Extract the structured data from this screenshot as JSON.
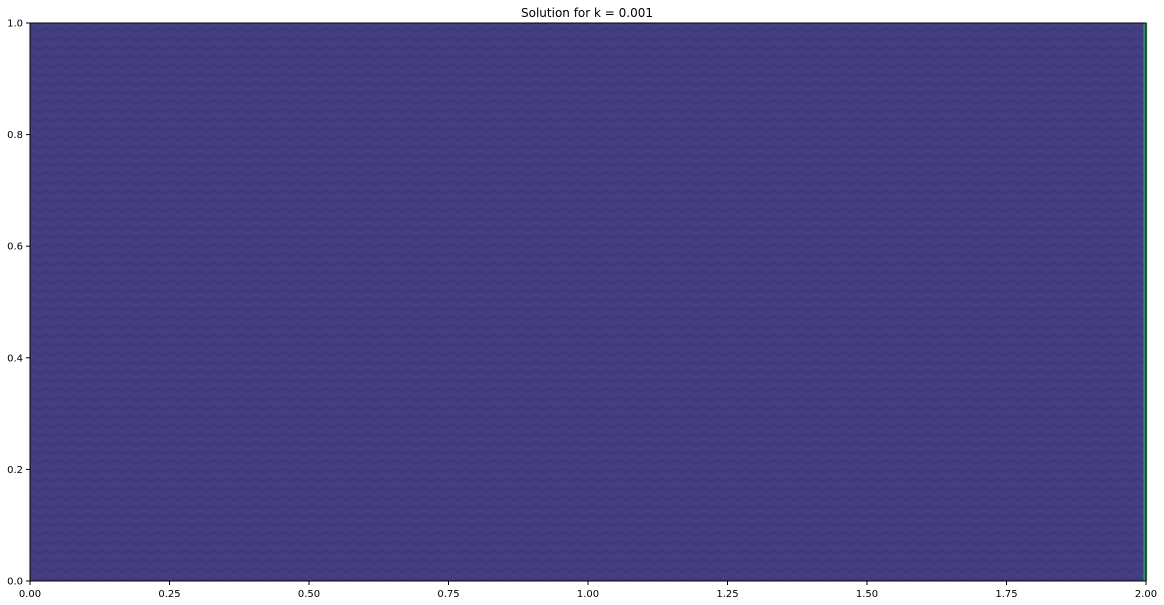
{
  "chart_data": {
    "type": "heatmap",
    "title": "Solution for k = 0.001",
    "xlabel": "",
    "ylabel": "",
    "xlim": [
      0.0,
      2.0
    ],
    "ylim": [
      0.0,
      1.0
    ],
    "xticks": [
      0.0,
      0.25,
      0.5,
      0.75,
      1.0,
      1.25,
      1.5,
      1.75,
      2.0
    ],
    "xtick_labels": [
      "0.00",
      "0.25",
      "0.50",
      "0.75",
      "1.00",
      "1.25",
      "1.50",
      "1.75",
      "2.00"
    ],
    "yticks": [
      0.0,
      0.2,
      0.4,
      0.6,
      0.8,
      1.0
    ],
    "ytick_labels": [
      "0.0",
      "0.2",
      "0.4",
      "0.6",
      "0.8",
      "1.0"
    ],
    "grid": false,
    "colormap": "viridis",
    "background_color": "#433d81",
    "edge_color": "#56c55b",
    "high_value_band_x": [
      1.995,
      2.0
    ]
  }
}
